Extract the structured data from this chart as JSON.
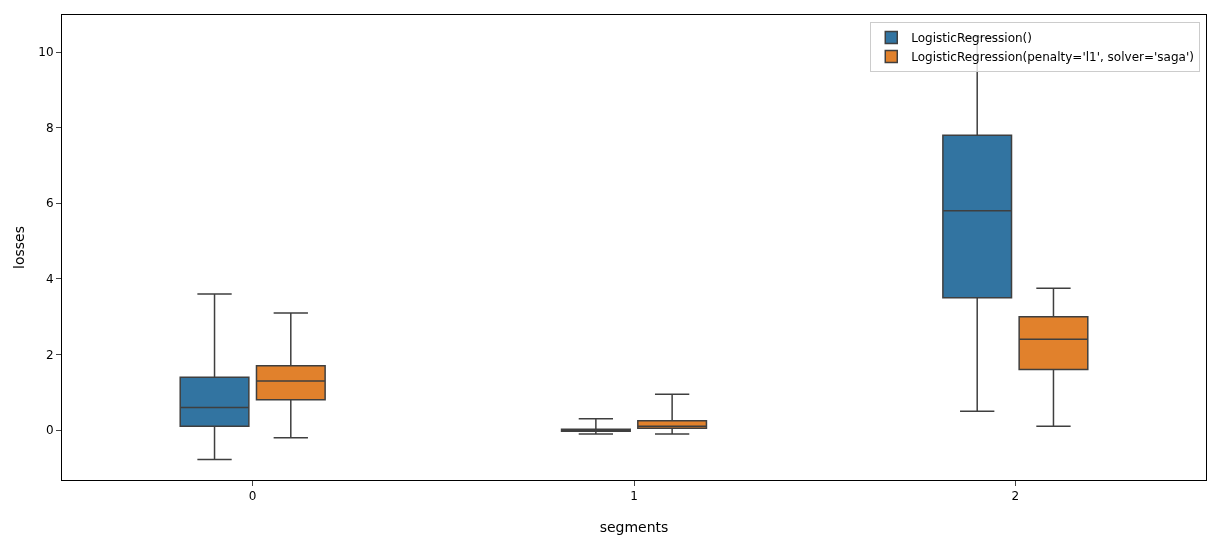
{
  "chart_data": {
    "type": "box",
    "xlabel": "segments",
    "ylabel": "losses",
    "categories": [
      "0",
      "1",
      "2"
    ],
    "ylim": [
      -1.32,
      10.98
    ],
    "yticks": [
      0,
      2,
      4,
      6,
      8,
      10
    ],
    "grid": false,
    "legend": "top right",
    "series": [
      {
        "name": "LogisticRegression()",
        "color": "#3274a1",
        "boxes": [
          {
            "low": -0.78,
            "q1": 0.1,
            "median": 0.6,
            "q3": 1.4,
            "high": 3.6
          },
          {
            "low": -0.1,
            "q1": -0.03,
            "median": -0.01,
            "q3": 0.02,
            "high": 0.3
          },
          {
            "low": 0.5,
            "q1": 3.5,
            "median": 5.8,
            "q3": 7.8,
            "high": 10.4
          }
        ]
      },
      {
        "name": "LogisticRegression(penalty='l1', solver='saga')",
        "color": "#e1812c",
        "boxes": [
          {
            "low": -0.2,
            "q1": 0.8,
            "median": 1.3,
            "q3": 1.7,
            "high": 3.1
          },
          {
            "low": -0.1,
            "q1": 0.05,
            "median": 0.1,
            "q3": 0.25,
            "high": 0.95
          },
          {
            "low": 0.1,
            "q1": 1.6,
            "median": 2.4,
            "q3": 3.0,
            "high": 3.75
          }
        ]
      }
    ]
  }
}
